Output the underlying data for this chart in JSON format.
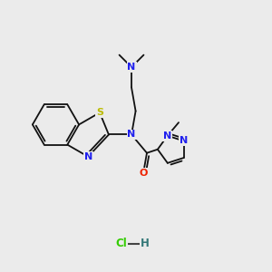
{
  "bg": "#ebebeb",
  "bc": "#111111",
  "bw": 1.3,
  "ac": {
    "N": "#2020ee",
    "S": "#bbbb00",
    "O": "#ee2200",
    "Cl": "#33cc00",
    "H": "#337777",
    "C": "#111111"
  },
  "fs": 8.0,
  "xlim": [
    0,
    10
  ],
  "ylim": [
    0,
    10
  ]
}
